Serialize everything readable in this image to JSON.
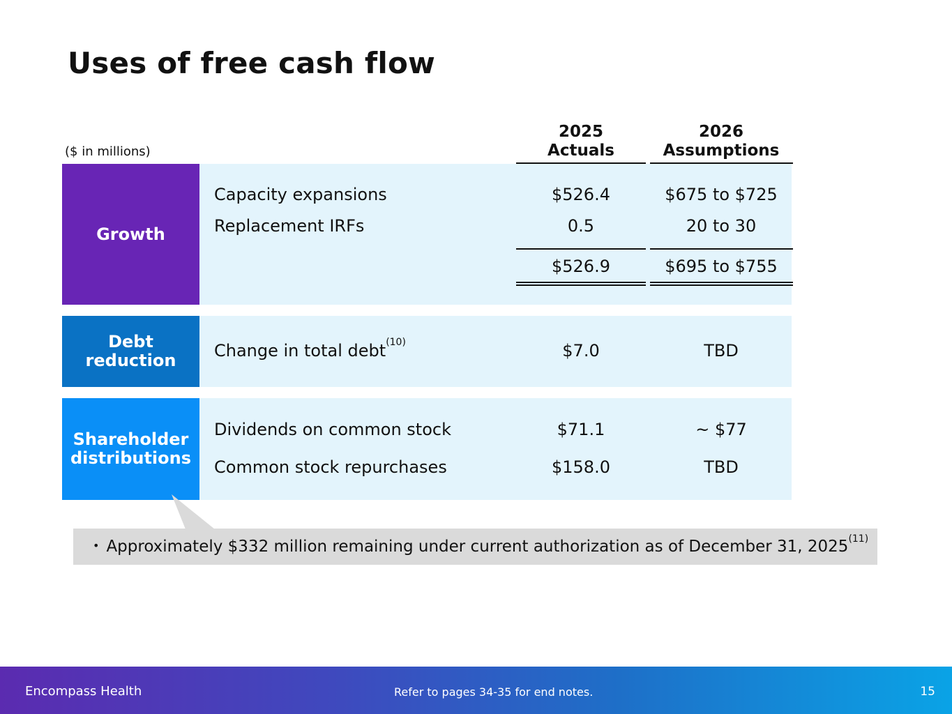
{
  "title": "Uses of free cash flow",
  "units": "($ in millions)",
  "columns": {
    "actuals": {
      "year": "2025",
      "label": "Actuals"
    },
    "assumptions": {
      "year": "2026",
      "label": "Assumptions"
    }
  },
  "growth": {
    "label": "Growth",
    "rows": [
      {
        "item": "Capacity expansions",
        "actual": "$526.4",
        "assumption": "$675 to $725"
      },
      {
        "item": "Replacement IRFs",
        "actual": "0.5",
        "assumption": "20 to 30"
      }
    ],
    "total": {
      "actual": "$526.9",
      "assumption": "$695 to $755"
    }
  },
  "debt": {
    "label_line1": "Debt",
    "label_line2": "reduction",
    "row": {
      "item": "Change in total debt",
      "note": "(10)",
      "actual": "$7.0",
      "assumption": "TBD"
    }
  },
  "shareholder": {
    "label_line1": "Shareholder",
    "label_line2": "distributions",
    "rows": [
      {
        "item": "Dividends on common stock",
        "actual": "$71.1",
        "assumption": "~ $77"
      },
      {
        "item": "Common stock repurchases",
        "actual": "$158.0",
        "assumption": "TBD"
      }
    ]
  },
  "callout": {
    "bullet": "•",
    "text": "Approximately $332 million remaining under current authorization as of December 31, 2025",
    "note": "(11)"
  },
  "footer": {
    "brand": "Encompass Health",
    "note": "Refer to pages 34-35 for end notes.",
    "page": "15"
  },
  "colors": {
    "growth": "#6825b5",
    "debt": "#0a72c4",
    "shareholder": "#0a8ff7",
    "panel": "#e3f4fc",
    "callout": "#dadada"
  }
}
